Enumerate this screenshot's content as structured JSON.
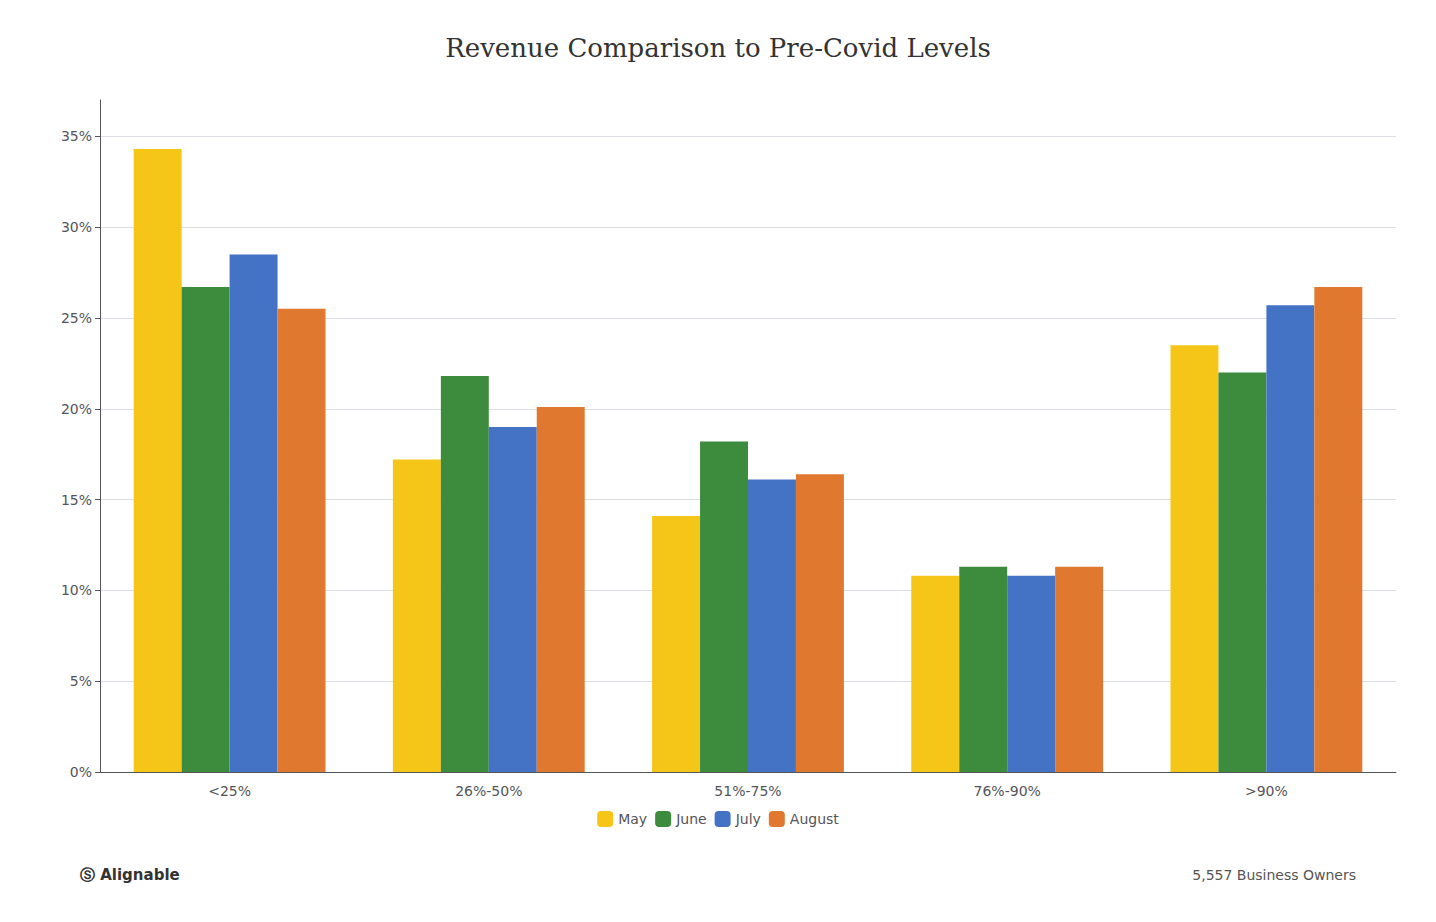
{
  "chart_data": {
    "type": "bar",
    "title": "Revenue Comparison to Pre-Covid Levels",
    "categories": [
      "<25%",
      "26%-50%",
      "51%-75%",
      "76%-90%",
      ">90%"
    ],
    "series": [
      {
        "name": "May",
        "color": "#F5C518",
        "values": [
          34.3,
          17.2,
          14.1,
          10.8,
          23.5
        ]
      },
      {
        "name": "June",
        "color": "#3d8c3d",
        "values": [
          26.7,
          21.8,
          18.2,
          11.3,
          22.0
        ]
      },
      {
        "name": "July",
        "color": "#4472c4",
        "values": [
          28.5,
          19.0,
          16.1,
          10.8,
          25.7
        ]
      },
      {
        "name": "August",
        "color": "#E07830",
        "values": [
          25.5,
          20.1,
          16.4,
          11.3,
          26.7
        ]
      }
    ],
    "ylim": [
      0,
      37
    ],
    "yticks": [
      {
        "value": 0,
        "label": "0%"
      },
      {
        "value": 5,
        "label": "5%"
      },
      {
        "value": 10,
        "label": "10%"
      },
      {
        "value": 15,
        "label": "15%"
      },
      {
        "value": 20,
        "label": "20%"
      },
      {
        "value": 25,
        "label": "25%"
      },
      {
        "value": 30,
        "label": "30%"
      },
      {
        "value": 35,
        "label": "35%"
      }
    ],
    "grid": true,
    "legend": "bottom",
    "annotations": [
      "Ⓢ Alignable",
      "5,557 Business Owners"
    ]
  }
}
